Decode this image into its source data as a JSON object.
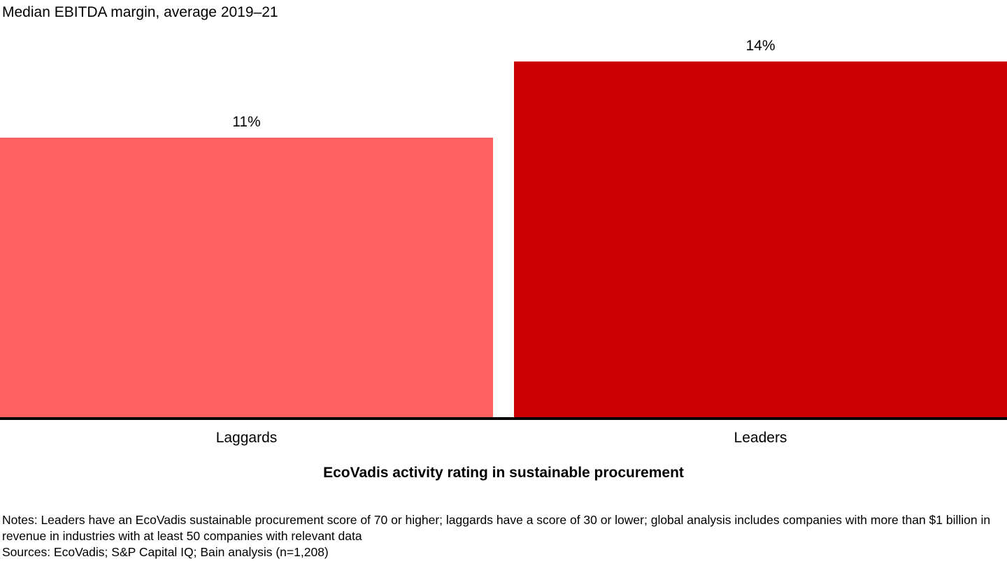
{
  "chart_data": {
    "type": "bar",
    "title": "Median EBITDA margin, average 2019–21",
    "categories": [
      "Laggards",
      "Leaders"
    ],
    "values": [
      11,
      14
    ],
    "value_labels": [
      "11%",
      "14%"
    ],
    "bar_colors": [
      "#FF6161",
      "#CC0000"
    ],
    "xlabel": "EcoVadis activity rating in sustainable procurement",
    "ylabel": "",
    "ylim": [
      0,
      14
    ],
    "grid": false,
    "legend": false
  },
  "footnotes": {
    "notes": "Notes: Leaders have an EcoVadis sustainable procurement score of 70 or higher; laggards have a score of 30 or lower; global analysis includes companies with more than $1 billion in revenue in industries with at least 50 companies with relevant data",
    "sources": "Sources: EcoVadis; S&P Capital IQ; Bain analysis (n=1,208)"
  }
}
